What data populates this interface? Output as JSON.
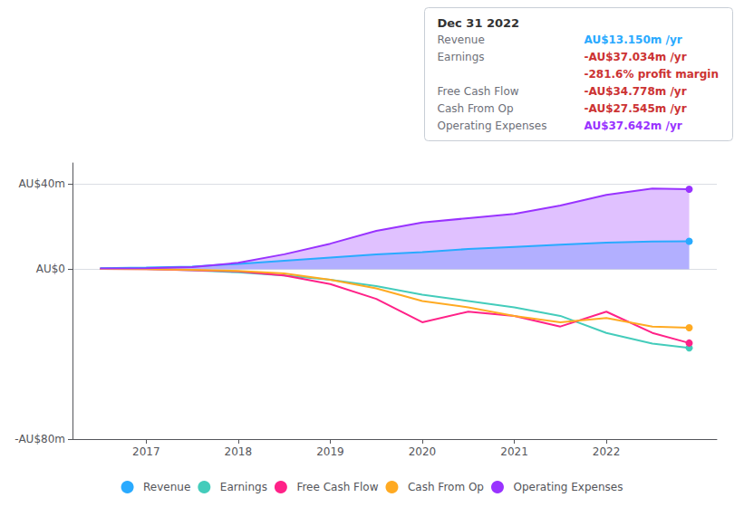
{
  "chart_data": {
    "type": "line",
    "x": [
      2016.5,
      2017.0,
      2017.5,
      2018.0,
      2018.5,
      2019.0,
      2019.5,
      2020.0,
      2020.5,
      2021.0,
      2021.5,
      2022.0,
      2022.5,
      2022.9
    ],
    "xlim": [
      2016.2,
      2023.2
    ],
    "xticks": [
      2017,
      2018,
      2019,
      2020,
      2021,
      2022
    ],
    "ylim": [
      -80,
      50
    ],
    "yticks": [
      {
        "value": -80,
        "label": "-AU$80m"
      },
      {
        "value": 0,
        "label": "AU$0"
      },
      {
        "value": 40,
        "label": "AU$40m"
      }
    ],
    "grid": true,
    "legend": "bottom",
    "series": [
      {
        "name": "Revenue",
        "color": "#29aaff",
        "type": "area",
        "values": [
          0.5,
          0.8,
          1.2,
          2.5,
          4.0,
          5.5,
          7.0,
          8.0,
          9.5,
          10.5,
          11.5,
          12.5,
          13.0,
          13.15
        ]
      },
      {
        "name": "Earnings",
        "color": "#44ccbb",
        "type": "line",
        "values": [
          0.2,
          0.1,
          -0.5,
          -1.5,
          -3.0,
          -5.0,
          -8.0,
          -12.0,
          -15.0,
          -18.0,
          -22.0,
          -30.0,
          -35.0,
          -37.034
        ]
      },
      {
        "name": "Free Cash Flow",
        "color": "#ff2288",
        "type": "line",
        "values": [
          0.1,
          0.0,
          -0.5,
          -1.0,
          -3.0,
          -7.0,
          -14.0,
          -25.0,
          -20.0,
          -22.0,
          -27.0,
          -20.0,
          -30.0,
          -34.778
        ]
      },
      {
        "name": "Cash From Op",
        "color": "#ffaa22",
        "type": "line",
        "values": [
          0.1,
          0.0,
          -0.3,
          -0.8,
          -2.0,
          -5.0,
          -9.0,
          -15.0,
          -18.0,
          -22.0,
          -25.0,
          -23.0,
          -27.0,
          -27.545
        ]
      },
      {
        "name": "Operating Expenses",
        "color": "#9933ff",
        "type": "area",
        "values": [
          0.3,
          0.5,
          1.0,
          3.0,
          7.0,
          12.0,
          18.0,
          22.0,
          24.0,
          26.0,
          30.0,
          35.0,
          38.0,
          37.642
        ]
      }
    ],
    "annotations": {
      "title": "Dec 31 2022",
      "rows": [
        {
          "label": "Revenue",
          "value": "AU$13.150m /yr",
          "color": "#29aaff"
        },
        {
          "label": "Earnings",
          "value": "-AU$37.034m /yr",
          "color": "#cc3333"
        },
        {
          "value": "-281.6% profit margin",
          "color": "#cc3333"
        },
        {
          "label": "Free Cash Flow",
          "value": "-AU$34.778m /yr",
          "color": "#cc3333"
        },
        {
          "label": "Cash From Op",
          "value": "-AU$27.545m /yr",
          "color": "#cc3333"
        },
        {
          "label": "Operating Expenses",
          "value": "AU$37.642m /yr",
          "color": "#9933ff"
        }
      ]
    }
  }
}
